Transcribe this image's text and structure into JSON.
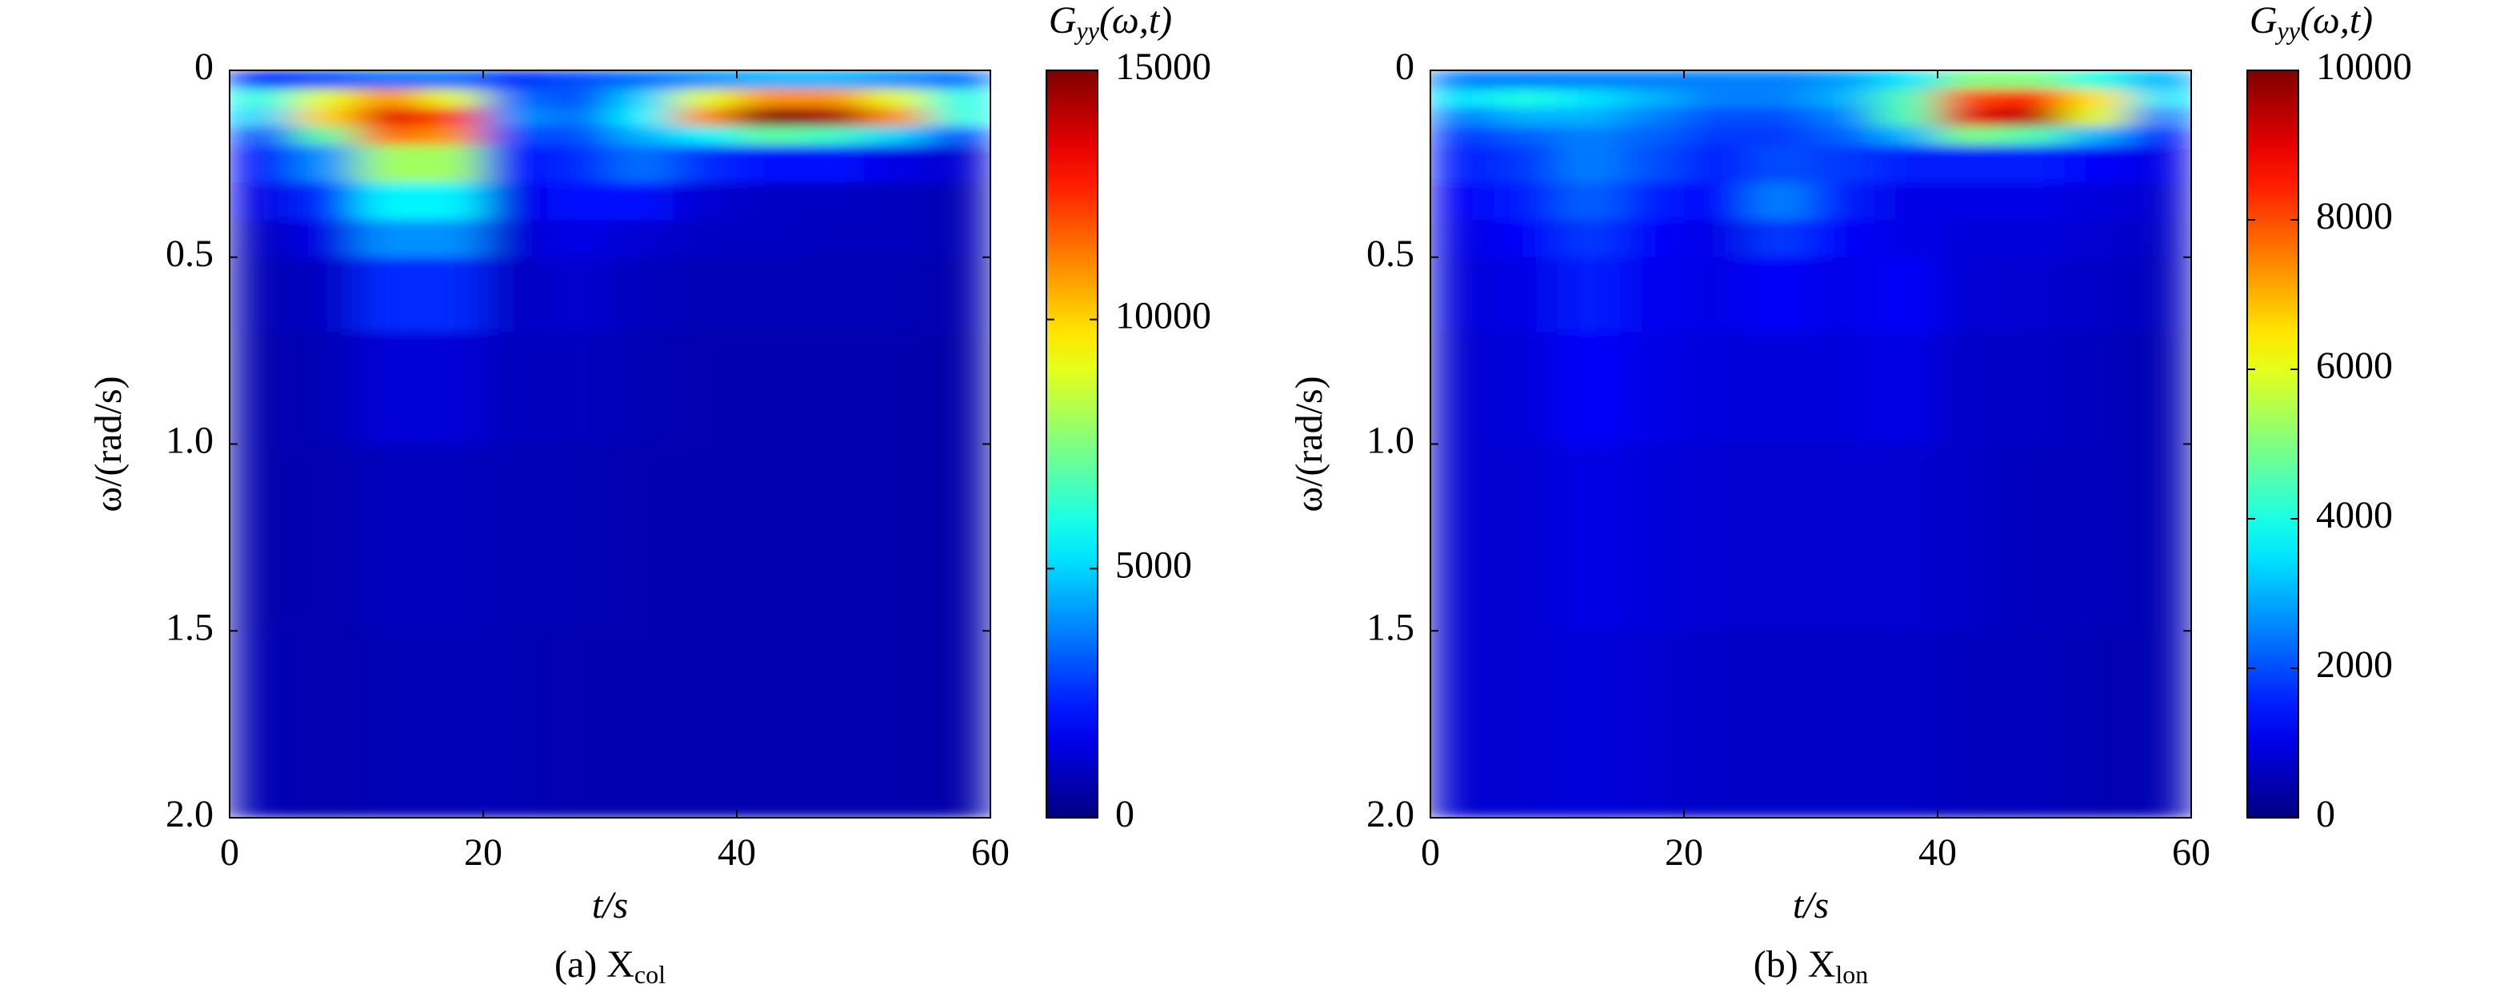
{
  "chart_data": [
    {
      "type": "heatmap",
      "colormap": "jet",
      "xlabel": "t/s",
      "ylabel": "ω/(rad/s)",
      "colorbar_label": {
        "main": "G",
        "sub": "yy",
        "args": "(ω,t)"
      },
      "caption": {
        "text": "(a) X",
        "sub": "col"
      },
      "xlim": [
        0,
        60
      ],
      "xticks": [
        0,
        20,
        40,
        60
      ],
      "ylim": [
        0,
        2
      ],
      "y_reversed": true,
      "yticks": [
        0,
        0.5,
        {
          "value": 1,
          "label": "1.0"
        },
        1.5,
        {
          "value": 2,
          "label": "2.0"
        }
      ],
      "clim": [
        0,
        15000
      ],
      "cticks": [
        0,
        5000,
        10000,
        15000
      ],
      "x_edges": [
        0,
        5,
        10,
        15,
        20,
        25,
        30,
        35,
        40,
        45,
        50,
        55,
        60
      ],
      "y_edges": [
        0,
        0.05,
        0.1,
        0.15,
        0.2,
        0.3,
        0.4,
        0.5,
        0.7,
        1.0,
        1.5,
        2.0
      ],
      "z": [
        [
          2500,
          3000,
          3500,
          3500,
          2500,
          3000,
          3500,
          4000,
          4500,
          4500,
          4000,
          3500
        ],
        [
          6000,
          9000,
          11000,
          9000,
          3500,
          3000,
          5000,
          9000,
          11000,
          11000,
          9000,
          6000
        ],
        [
          5000,
          10000,
          13500,
          12000,
          4000,
          3500,
          5500,
          11000,
          15000,
          14500,
          11000,
          6000
        ],
        [
          3000,
          7000,
          11500,
          11000,
          3000,
          3000,
          4500,
          5500,
          7000,
          6500,
          5000,
          3000
        ],
        [
          2000,
          4000,
          8000,
          8000,
          2000,
          2500,
          3500,
          2500,
          2000,
          2000,
          1500,
          1200
        ],
        [
          1500,
          2500,
          5500,
          5500,
          1500,
          2000,
          2000,
          1200,
          1000,
          1000,
          900,
          800
        ],
        [
          1000,
          1500,
          4000,
          4000,
          1200,
          1500,
          1200,
          1000,
          1000,
          900,
          900,
          800
        ],
        [
          800,
          1000,
          2500,
          2500,
          1000,
          1200,
          900,
          800,
          800,
          800,
          800,
          700
        ],
        [
          700,
          800,
          1300,
          1300,
          900,
          900,
          800,
          700,
          700,
          700,
          700,
          600
        ],
        [
          700,
          700,
          900,
          900,
          800,
          800,
          700,
          700,
          700,
          700,
          700,
          600
        ],
        [
          800,
          700,
          800,
          800,
          800,
          700,
          700,
          700,
          700,
          700,
          700,
          600
        ]
      ]
    },
    {
      "type": "heatmap",
      "colormap": "jet",
      "xlabel": "t/s",
      "ylabel": "ω/(rad/s)",
      "colorbar_label": {
        "main": "G",
        "sub": "yy",
        "args": "(ω,t)"
      },
      "caption": {
        "text": "(b) X",
        "sub": "lon"
      },
      "xlim": [
        0,
        60
      ],
      "xticks": [
        0,
        20,
        40,
        60
      ],
      "ylim": [
        0,
        2
      ],
      "y_reversed": true,
      "yticks": [
        0,
        0.5,
        {
          "value": 1,
          "label": "1.0"
        },
        1.5,
        {
          "value": 2,
          "label": "2.0"
        }
      ],
      "clim": [
        0,
        10000
      ],
      "cticks": [
        0,
        2000,
        4000,
        6000,
        8000,
        10000
      ],
      "x_edges": [
        0,
        5,
        10,
        15,
        20,
        25,
        30,
        35,
        40,
        45,
        50,
        55,
        60
      ],
      "y_edges": [
        0,
        0.05,
        0.1,
        0.15,
        0.2,
        0.3,
        0.4,
        0.5,
        0.7,
        1.0,
        1.5,
        2.0
      ],
      "z": [
        [
          2500,
          2500,
          2500,
          2500,
          2500,
          2500,
          2800,
          3500,
          5000,
          5000,
          4000,
          3000
        ],
        [
          3500,
          4000,
          3500,
          3000,
          2500,
          2500,
          3000,
          4500,
          8000,
          8500,
          6500,
          3500
        ],
        [
          2500,
          3000,
          3000,
          2500,
          2000,
          2000,
          2500,
          4500,
          9000,
          9500,
          6000,
          2500
        ],
        [
          1800,
          2200,
          2500,
          2200,
          1800,
          1800,
          2200,
          3000,
          5000,
          4500,
          3000,
          1500
        ],
        [
          1500,
          1800,
          2500,
          2000,
          1500,
          2000,
          1800,
          1500,
          1500,
          1500,
          1200,
          1000
        ],
        [
          1200,
          1500,
          2200,
          1500,
          1200,
          2500,
          1500,
          1000,
          1000,
          1000,
          900,
          800
        ],
        [
          1000,
          1200,
          1800,
          1200,
          1000,
          1800,
          1200,
          1000,
          900,
          900,
          800,
          700
        ],
        [
          900,
          1000,
          1500,
          1100,
          1000,
          1200,
          1000,
          1200,
          800,
          800,
          700,
          600
        ],
        [
          800,
          900,
          1200,
          1000,
          900,
          900,
          900,
          1000,
          700,
          700,
          600,
          500
        ],
        [
          800,
          800,
          1000,
          900,
          800,
          800,
          800,
          800,
          700,
          600,
          600,
          500
        ],
        [
          800,
          800,
          900,
          800,
          700,
          700,
          700,
          700,
          600,
          600,
          500,
          500
        ]
      ]
    }
  ]
}
